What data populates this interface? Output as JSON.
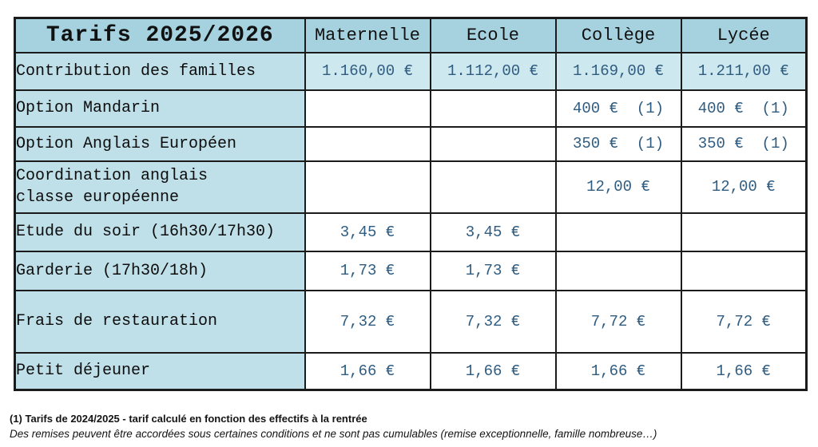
{
  "table": {
    "title": "Tarifs 2025/2026",
    "columns": [
      "Maternelle",
      "Ecole",
      "Collège",
      "Lycée"
    ],
    "rows": [
      {
        "label": "Contribution des familles",
        "values": [
          "1.160,00 €",
          "1.112,00 €",
          "1.169,00 €",
          "1.211,00 €"
        ],
        "highlight": true
      },
      {
        "label": "Option Mandarin",
        "values": [
          "",
          "",
          "400 €  (1)",
          "400 €  (1)"
        ],
        "highlight": false
      },
      {
        "label": "Option Anglais Européen",
        "values": [
          "",
          "",
          "350 €  (1)",
          "350 €  (1)"
        ],
        "highlight": false
      },
      {
        "label": "Coordination anglais\nclasse européenne",
        "values": [
          "",
          "",
          "12,00 €",
          "12,00 €"
        ],
        "highlight": false
      },
      {
        "label": "Etude du soir (16h30/17h30)",
        "values": [
          "3,45 €",
          "3,45 €",
          "",
          ""
        ],
        "highlight": false
      },
      {
        "label": "Garderie (17h30/18h)",
        "values": [
          "1,73 €",
          "1,73 €",
          "",
          ""
        ],
        "highlight": false
      },
      {
        "label": "Frais de restauration",
        "values": [
          "7,32 €",
          "7,32 €",
          "7,72 €",
          "7,72 €"
        ],
        "highlight": false
      },
      {
        "label": "Petit déjeuner",
        "values": [
          "1,66 €",
          "1,66 €",
          "1,66 €",
          "1,66 €"
        ],
        "highlight": false
      }
    ]
  },
  "footnotes": {
    "line1": "(1) Tarifs de 2024/2025 - tarif calculé en fonction des effectifs à la rentrée",
    "line2": "Des remises peuvent être accordées sous certaines conditions et ne sont pas cumulables (remise exceptionnelle, famille nombreuse…)"
  },
  "colors": {
    "header_bg": "#a6d2e0",
    "label_column_bg": "#bfe0e9",
    "highlight_row_bg": "#cde8ef",
    "value_text": "#2f5c80",
    "border": "#1b1b1b"
  }
}
